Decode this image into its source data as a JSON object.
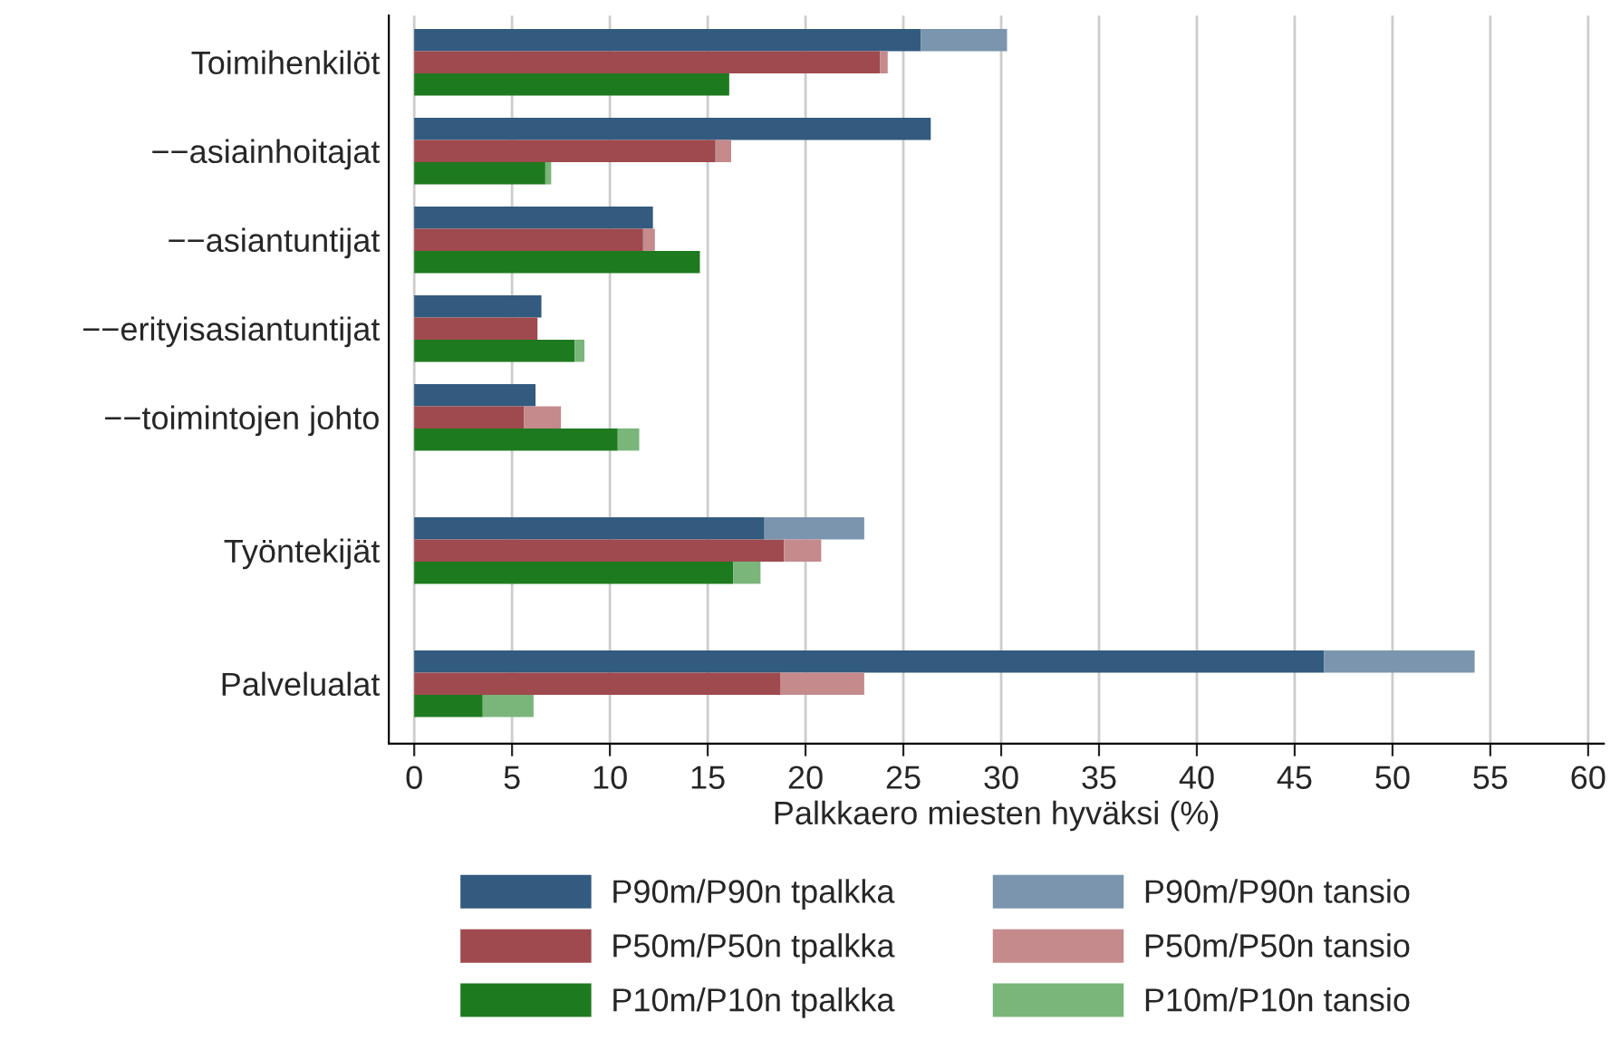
{
  "chart_data": {
    "type": "bar",
    "orientation": "horizontal",
    "stacked": true,
    "xlabel": "Palkkaero miesten hyväksi (%)",
    "categories": [
      null,
      "Toimihenkilöt",
      null,
      null,
      null,
      "−−asiainhoitajat",
      null,
      null,
      null,
      "−−asiantuntijat",
      null,
      null,
      null,
      "−−erityisasiantuntijat",
      null,
      null,
      null,
      "−−toimintojen johto",
      null,
      null,
      null,
      null,
      null,
      "Työntekijät",
      null,
      null,
      null,
      null,
      null,
      "Palvelualat",
      null
    ],
    "series": [
      {
        "name": "P90m/P90n tpalkka",
        "color": "#335a7f",
        "values": [
          25.9,
          null,
          null,
          null,
          26.4,
          null,
          null,
          null,
          12.2,
          null,
          null,
          null,
          6.5,
          null,
          null,
          null,
          6.2,
          null,
          null,
          null,
          null,
          null,
          17.9,
          null,
          null,
          null,
          null,
          null,
          46.5,
          null,
          null
        ]
      },
      {
        "name": "P50m/P50n tpalkka",
        "color": "#9e4a4f",
        "values": [
          null,
          23.8,
          null,
          null,
          null,
          15.4,
          null,
          null,
          null,
          11.7,
          null,
          null,
          null,
          6.3,
          null,
          null,
          null,
          5.6,
          null,
          null,
          null,
          null,
          null,
          18.9,
          null,
          null,
          null,
          null,
          null,
          18.7,
          null
        ]
      },
      {
        "name": "P10m/P10n tpalkka",
        "color": "#1e7a1e",
        "values": [
          null,
          null,
          16.1,
          null,
          null,
          null,
          6.7,
          null,
          null,
          null,
          14.6,
          null,
          null,
          null,
          8.2,
          null,
          null,
          null,
          10.4,
          null,
          null,
          null,
          null,
          null,
          16.3,
          null,
          null,
          null,
          null,
          null,
          3.5
        ]
      },
      {
        "name": "P90m/P90n tansio",
        "color": "#7a95ad",
        "values": [
          4.4,
          null,
          null,
          null,
          null,
          null,
          null,
          null,
          null,
          null,
          null,
          null,
          null,
          null,
          null,
          null,
          null,
          null,
          null,
          null,
          null,
          null,
          5.1,
          null,
          null,
          null,
          null,
          null,
          7.7,
          null,
          null
        ]
      },
      {
        "name": "P50m/P50n tansio",
        "color": "#c48a8c",
        "values": [
          null,
          0.4,
          null,
          null,
          null,
          0.8,
          null,
          null,
          null,
          0.6,
          null,
          null,
          null,
          null,
          null,
          null,
          null,
          1.9,
          null,
          null,
          null,
          null,
          null,
          1.9,
          null,
          null,
          null,
          null,
          null,
          4.3,
          null
        ]
      },
      {
        "name": "P10m/P10n tansio",
        "color": "#7ab57a",
        "values": [
          null,
          null,
          null,
          null,
          null,
          null,
          0.3,
          null,
          null,
          null,
          null,
          null,
          null,
          null,
          0.5,
          null,
          null,
          null,
          1.1,
          null,
          null,
          null,
          null,
          null,
          1.4,
          null,
          null,
          null,
          null,
          null,
          2.6
        ]
      }
    ],
    "xlim": [
      -1.3,
      60.8
    ],
    "xticks": [
      0,
      5,
      10,
      15,
      20,
      25,
      30,
      35,
      40,
      45,
      50,
      55,
      60
    ],
    "grid": "x",
    "legend": "bottom"
  }
}
